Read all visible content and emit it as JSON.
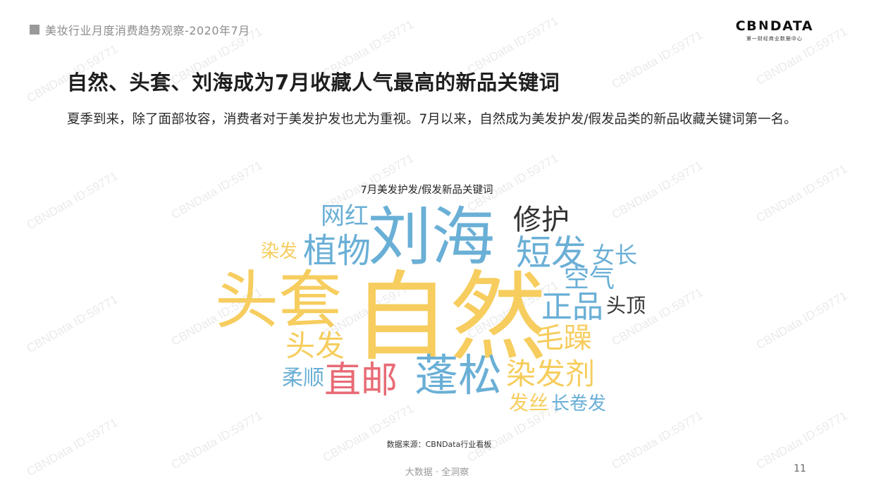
{
  "header": {
    "report_title": "美妆行业月度消费趋势观察-2020年7月"
  },
  "logo": {
    "main_left": "CB",
    "main_mark": "N",
    "main_right": "DATA",
    "sub": "第一财经商业数据中心"
  },
  "title": "自然、头套、刘海成为7月收藏人气最高的新品关键词",
  "intro": "夏季到来，除了面部妆容，消费者对于美发护发也尤为重视。7月以来，自然成为美发护发/假发品类的新品收藏关键词第一名。",
  "chart_data": {
    "type": "wordcloud",
    "title": "7月美发护发/假发新品关键词",
    "words": [
      {
        "text": "自然",
        "color": "#f6cd5e"
      },
      {
        "text": "刘海",
        "color": "#6aafd6"
      },
      {
        "text": "头套",
        "color": "#f6cd5e"
      },
      {
        "text": "蓬松",
        "color": "#6aafd6"
      },
      {
        "text": "直邮",
        "color": "#e86b75"
      },
      {
        "text": "植物",
        "color": "#6aafd6"
      },
      {
        "text": "短发",
        "color": "#6aafd6"
      },
      {
        "text": "修护",
        "color": "#333333"
      },
      {
        "text": "染发剂",
        "color": "#f6cd5e"
      },
      {
        "text": "正品",
        "color": "#6aafd6"
      },
      {
        "text": "毛躁",
        "color": "#f6cd5e"
      },
      {
        "text": "头发",
        "color": "#f6cd5e"
      },
      {
        "text": "网红",
        "color": "#6aafd6"
      },
      {
        "text": "空气",
        "color": "#6aafd6"
      },
      {
        "text": "女长",
        "color": "#6aafd6"
      },
      {
        "text": "头顶",
        "color": "#333333"
      },
      {
        "text": "染发",
        "color": "#f6cd5e"
      },
      {
        "text": "柔顺",
        "color": "#6aafd6"
      },
      {
        "text": "发丝",
        "color": "#f6cd5e"
      },
      {
        "text": "长卷发",
        "color": "#6aafd6"
      }
    ]
  },
  "source": "数据来源：CBNData行业看板",
  "footer": {
    "slogan": "大数据 · 全洞察",
    "page_number": "11"
  },
  "watermark_text": "CBNData ID:59771"
}
